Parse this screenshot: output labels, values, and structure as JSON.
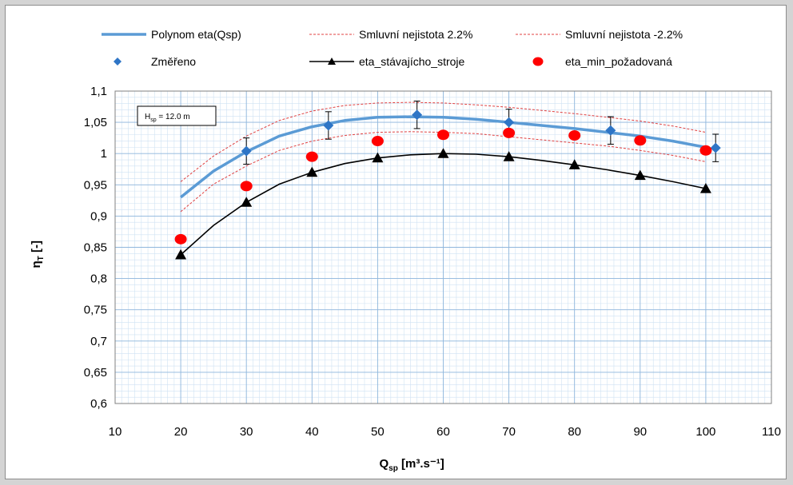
{
  "chart_data": {
    "type": "scatter",
    "xlabel": "Q",
    "xlabel_sub": "sp",
    "xlabel_units": "[m³.s⁻¹]",
    "ylabel": "η",
    "ylabel_sub": "T",
    "ylabel_units": "[-]",
    "xlim": [
      10,
      110
    ],
    "ylim": [
      0.6,
      1.1
    ],
    "x_ticks": [
      "10",
      "20",
      "30",
      "40",
      "50",
      "60",
      "70",
      "80",
      "90",
      "100",
      "110"
    ],
    "y_ticks": [
      "0,6",
      "0,65",
      "0,7",
      "0,75",
      "0,8",
      "0,85",
      "0,9",
      "0,95",
      "1",
      "1,05",
      "1,1"
    ],
    "grid": true,
    "legend_position": "top",
    "annotation": {
      "main": "H",
      "sub": "sp",
      "rest": " = 12.0 m"
    },
    "series": [
      {
        "name": "Polynom eta(Qsp)",
        "kind": "line",
        "color": "#5b9bd5",
        "x": [
          20,
          25,
          30,
          35,
          40,
          45,
          50,
          55,
          60,
          65,
          70,
          75,
          80,
          85,
          90,
          95,
          100
        ],
        "y": [
          0.93,
          0.972,
          1.003,
          1.028,
          1.043,
          1.053,
          1.058,
          1.059,
          1.058,
          1.055,
          1.05,
          1.045,
          1.04,
          1.034,
          1.028,
          1.02,
          1.01
        ]
      },
      {
        "name": "Smluvní nejistota 2.2%",
        "kind": "dashed-line",
        "color": "#e04040",
        "x": [
          20,
          25,
          30,
          35,
          40,
          45,
          50,
          55,
          60,
          65,
          70,
          75,
          80,
          85,
          90,
          95,
          100
        ],
        "y": [
          0.955,
          0.996,
          1.028,
          1.053,
          1.068,
          1.077,
          1.081,
          1.082,
          1.081,
          1.078,
          1.074,
          1.069,
          1.064,
          1.058,
          1.052,
          1.044,
          1.034
        ]
      },
      {
        "name": "Smluvní nejistota -2.2%",
        "kind": "dashed-line",
        "color": "#e04040",
        "x": [
          20,
          25,
          30,
          35,
          40,
          45,
          50,
          55,
          60,
          65,
          70,
          75,
          80,
          85,
          90,
          95,
          100
        ],
        "y": [
          0.907,
          0.951,
          0.98,
          1.005,
          1.02,
          1.029,
          1.034,
          1.035,
          1.034,
          1.032,
          1.027,
          1.022,
          1.017,
          1.012,
          1.005,
          0.997,
          0.987
        ]
      },
      {
        "name": "Změřeno",
        "kind": "diamond",
        "color": "#2e75c6",
        "x": [
          30,
          42.5,
          56,
          70,
          85.5,
          101.5
        ],
        "y": [
          1.004,
          1.045,
          1.062,
          1.05,
          1.037,
          1.009
        ],
        "error": [
          0.021,
          0.022,
          0.022,
          0.021,
          0.022,
          0.022
        ]
      },
      {
        "name": "eta_stávajícho_stroje",
        "kind": "line-triangle",
        "color": "#000000",
        "x": [
          20,
          30,
          40,
          50,
          60,
          70,
          80,
          90,
          100
        ],
        "y": [
          0.838,
          0.922,
          0.97,
          0.993,
          1.0,
          0.995,
          0.982,
          0.965,
          0.944
        ],
        "curve_x": [
          20,
          25,
          30,
          35,
          40,
          45,
          50,
          55,
          60,
          65,
          70,
          75,
          80,
          85,
          90,
          95,
          100
        ],
        "curve_y": [
          0.838,
          0.885,
          0.922,
          0.951,
          0.97,
          0.984,
          0.993,
          0.998,
          1.0,
          0.999,
          0.995,
          0.989,
          0.982,
          0.974,
          0.965,
          0.955,
          0.944
        ]
      },
      {
        "name": "eta_min_požadovaná",
        "kind": "circle",
        "color": "#ff0000",
        "x": [
          20,
          30,
          40,
          50,
          60,
          70,
          80,
          90,
          100
        ],
        "y": [
          0.863,
          0.948,
          0.995,
          1.02,
          1.03,
          1.033,
          1.029,
          1.021,
          1.005
        ]
      }
    ]
  }
}
